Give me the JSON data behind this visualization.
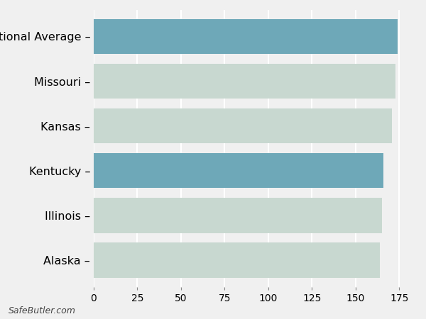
{
  "categories": [
    "Alaska",
    "Illinois",
    "Kentucky",
    "Kansas",
    "Missouri",
    "National Average"
  ],
  "values": [
    164,
    165,
    166,
    171,
    173,
    174
  ],
  "bar_colors": [
    "#c8d8d0",
    "#c8d8d0",
    "#6ea8b8",
    "#c8d8d0",
    "#c8d8d0",
    "#6ea8b8"
  ],
  "background_color": "#f0f0f0",
  "xlim": [
    0,
    183
  ],
  "xticks": [
    0,
    25,
    50,
    75,
    100,
    125,
    150,
    175
  ],
  "footer_text": "SafeButler.com",
  "bar_height": 0.78,
  "gridcolor": "#ffffff",
  "tick_fontsize": 10,
  "label_fontsize": 11.5
}
